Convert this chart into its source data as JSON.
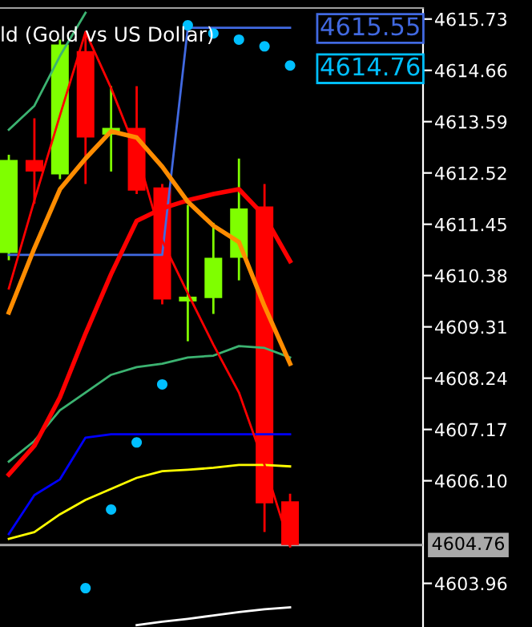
{
  "chart_data": {
    "type": "candlestick",
    "categories": [
      null,
      null,
      null,
      null,
      null,
      null,
      null,
      null,
      null,
      null,
      null,
      null
    ],
    "ohlc": [
      [
        4610.85,
        4612.9,
        4610.7,
        4612.79
      ],
      [
        4612.79,
        4613.66,
        4611.88,
        4612.55
      ],
      [
        4612.49,
        4615.3,
        4612.39,
        4615.2
      ],
      [
        4615.06,
        4615.46,
        4612.29,
        4613.26
      ],
      [
        4613.32,
        4614.33,
        4612.55,
        4613.46
      ],
      [
        4613.46,
        4614.33,
        4612.08,
        4612.15
      ],
      [
        4612.22,
        4612.29,
        4609.78,
        4609.88
      ],
      [
        4609.84,
        4611.85,
        4609.01,
        4609.94
      ],
      [
        4609.91,
        4611.48,
        4609.58,
        4610.75
      ],
      [
        4610.75,
        4612.82,
        4610.28,
        4611.78
      ],
      [
        4611.82,
        4612.29,
        4605.03,
        4605.63
      ],
      [
        4605.67,
        4605.83,
        4604.73,
        4604.76
      ]
    ],
    "colors": [
      "#7fff00",
      "#ff0000",
      "#7fff00",
      "#ff0000",
      "#7fff00",
      "#ff0000",
      "#ff0000",
      "#7fff00",
      "#7fff00",
      "#7fff00",
      "#ff0000",
      "#ff0000"
    ],
    "series": [
      {
        "type": "line",
        "color": "#3cb371",
        "values": [
          4613.42,
          4613.92,
          4614.96,
          4615.86,
          null,
          null,
          null,
          null,
          null,
          null,
          null,
          null
        ]
      },
      {
        "type": "line",
        "color": "#3cb371",
        "values": [
          4606.5,
          4606.93,
          4607.57,
          4607.94,
          4608.31,
          4608.47,
          4608.54,
          4608.67,
          4608.71,
          4608.91,
          4608.87,
          4608.67
        ]
      },
      {
        "type": "line",
        "color": "#0000ff",
        "values": [
          4604.99,
          4605.8,
          4606.13,
          4607.0,
          4607.07,
          4607.07,
          4607.07,
          4607.07,
          4607.07,
          4607.07,
          4607.07,
          4607.07
        ]
      },
      {
        "type": "line",
        "color": "#4169e1",
        "values": [
          4610.81,
          4610.81,
          4610.81,
          4610.81,
          4610.81,
          4610.81,
          4610.81,
          4615.55,
          4615.55,
          4615.55,
          4615.55,
          4615.55
        ]
      },
      {
        "type": "line",
        "color": "#ffff00",
        "values": [
          4604.89,
          4605.03,
          4605.4,
          4605.7,
          4605.93,
          4606.16,
          4606.3,
          4606.33,
          4606.37,
          4606.43,
          4606.43,
          4606.4
        ]
      },
      {
        "type": "line",
        "color": "#ffffff",
        "values": [
          null,
          null,
          null,
          null,
          null,
          4603.09,
          4603.16,
          4603.22,
          4603.29,
          4603.36,
          4603.42,
          4603.46
        ]
      },
      {
        "type": "line",
        "color": "#ff0000",
        "values": [
          4610.11,
          4611.95,
          4613.72,
          4615.46,
          4614.29,
          4612.95,
          4611.11,
          4610.01,
          4608.94,
          4607.94,
          4606.43,
          4604.73
        ]
      },
      {
        "type": "line",
        "color": "#ff0000",
        "values": [
          4606.23,
          4606.83,
          4607.84,
          4609.17,
          4610.41,
          4611.52,
          4611.78,
          4611.95,
          4612.08,
          4612.18,
          4611.62,
          4610.68
        ]
      },
      {
        "type": "line",
        "color": "#ff8c00",
        "values": [
          4609.61,
          4610.95,
          4612.18,
          4612.82,
          4613.39,
          4613.26,
          4612.65,
          4611.92,
          4611.42,
          4611.08,
          4609.74,
          4608.54
        ]
      },
      {
        "type": "scatter",
        "color": "#00bfff",
        "values": [
          null,
          null,
          null,
          4603.86,
          4605.5,
          4606.9,
          4608.11,
          4615.6,
          4615.43,
          4615.3,
          4615.16,
          4614.76
        ]
      }
    ],
    "ylim": [
      4603.05,
      4615.96
    ],
    "yticks": [
      4615.73,
      4614.66,
      4613.59,
      4612.52,
      4611.45,
      4610.38,
      4609.31,
      4608.24,
      4607.17,
      {
        "value": 4606.1,
        "label": "4606.10"
      },
      4603.96
    ],
    "ref_lines": [
      {
        "axis": "y",
        "value": 4604.76,
        "label": "4604.76",
        "color": "#a9a9a9"
      }
    ],
    "annotations": [
      "ld (Gold vs US Dollar)",
      "4615.55",
      "4614.76"
    ],
    "grid": false,
    "legend": false
  }
}
